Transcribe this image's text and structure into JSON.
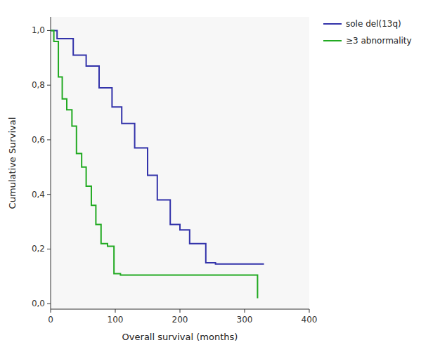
{
  "chart_data": {
    "type": "step",
    "xlabel": "Overall survival (months)",
    "ylabel": "Cumulative Survival",
    "xlim": [
      0,
      400
    ],
    "ylim": [
      -0.02,
      1.05
    ],
    "xticks": [
      0,
      100,
      200,
      300,
      400
    ],
    "yticks": [
      {
        "value": 0.0,
        "label": "0,0"
      },
      {
        "value": 0.2,
        "label": "0,2"
      },
      {
        "value": 0.4,
        "label": "0,4"
      },
      {
        "value": 0.6,
        "label": "0,6"
      },
      {
        "value": 0.8,
        "label": "0,8"
      },
      {
        "value": 1.0,
        "label": "1,0"
      }
    ],
    "grid": false,
    "legend": "right",
    "series": [
      {
        "name": "sole del(13q)",
        "color": "#3333aa",
        "x": [
          0,
          10,
          35,
          55,
          75,
          95,
          110,
          130,
          150,
          165,
          185,
          200,
          215,
          240,
          255,
          270,
          290,
          315,
          330
        ],
        "values": [
          1.0,
          0.97,
          0.91,
          0.87,
          0.79,
          0.72,
          0.66,
          0.57,
          0.47,
          0.38,
          0.29,
          0.27,
          0.22,
          0.15,
          0.145,
          0.145,
          0.145,
          0.145,
          0.145
        ]
      },
      {
        "name": "≥3 abnormality",
        "color": "#22aa22",
        "x": [
          0,
          5,
          12,
          18,
          25,
          33,
          40,
          48,
          55,
          63,
          70,
          78,
          88,
          98,
          108,
          120,
          135,
          155,
          310,
          320
        ],
        "values": [
          1.0,
          0.96,
          0.83,
          0.75,
          0.71,
          0.65,
          0.55,
          0.5,
          0.43,
          0.36,
          0.29,
          0.22,
          0.21,
          0.11,
          0.105,
          0.105,
          0.105,
          0.105,
          0.105,
          0.02
        ]
      }
    ]
  }
}
